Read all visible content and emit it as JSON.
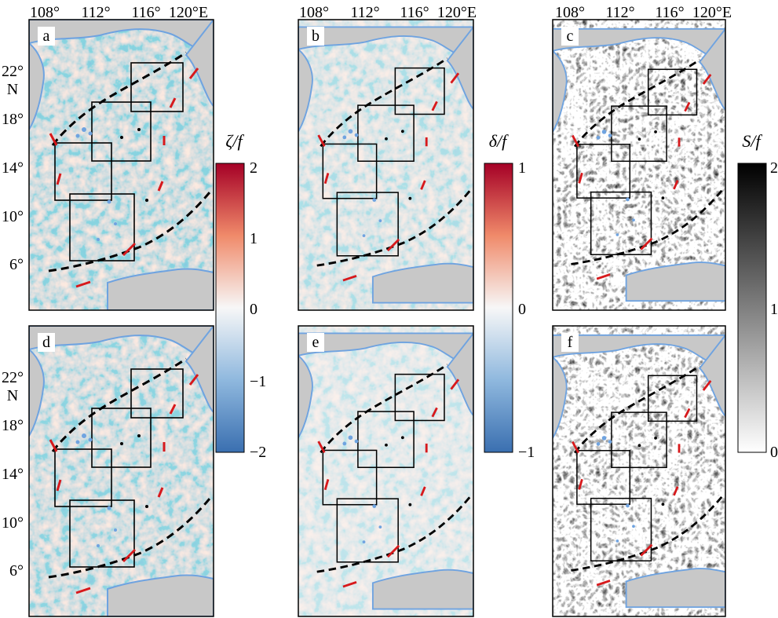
{
  "top_axis_labels": [
    "108°",
    "112°",
    "116°",
    "120°E"
  ],
  "left_axis_labels": [
    "22°",
    "18°",
    "14°",
    "10°",
    "6°"
  ],
  "north_label": "N",
  "panels": [
    {
      "label": "a",
      "field": "vorticity"
    },
    {
      "label": "b",
      "field": "divergence"
    },
    {
      "label": "c",
      "field": "strain"
    },
    {
      "label": "d",
      "field": "vorticity"
    },
    {
      "label": "e",
      "field": "divergence"
    },
    {
      "label": "f",
      "field": "strain"
    }
  ],
  "colorbars": {
    "vorticity": {
      "title": "ζ/f",
      "ticks": [
        "2",
        "1",
        "0",
        "−1",
        "−2"
      ],
      "range": [
        -2,
        2
      ],
      "colormap": "red-white-blue"
    },
    "divergence": {
      "title": "δ/f",
      "ticks": [
        "1",
        "0",
        "−1"
      ],
      "range": [
        -1,
        1
      ],
      "colormap": "red-white-blue"
    },
    "strain": {
      "title": "S/f",
      "ticks": [
        "2",
        "1",
        "0"
      ],
      "range": [
        0,
        2
      ],
      "colormap": "white-black"
    }
  },
  "colors": {
    "land": "#c8c8c8",
    "coastline": "#6fa3e0",
    "red_max": "#a50026",
    "blue_min": "#3a6fb0",
    "transect_markers": "#d7191c",
    "boxes": "#000000",
    "dashed_isobath": "#000000"
  }
}
